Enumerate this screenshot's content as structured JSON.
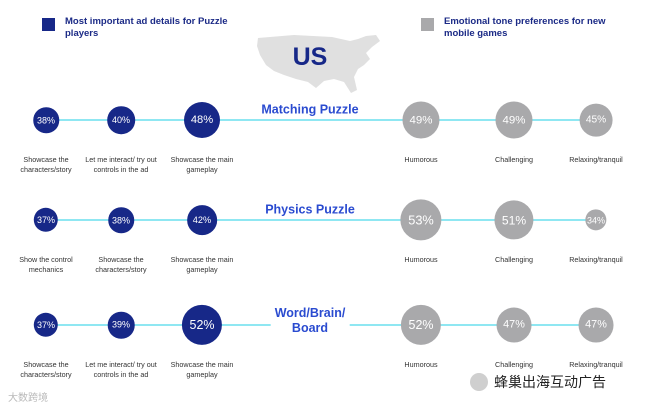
{
  "colors": {
    "ad_details": "#172888",
    "emotional_tone": "#a9a9ab",
    "title_text": "#2a4bd0",
    "connector": "#8fe7f2",
    "legend_text": "#1b2a86"
  },
  "legend": {
    "ad_details": "Most important ad details for Puzzle players",
    "emotional_tone": "Emotional tone preferences for new mobile games"
  },
  "country": "US",
  "map_icon": "usa-map-silhouette",
  "chart_data": [
    {
      "type": "bubble",
      "title": "Matching Puzzle",
      "series": [
        {
          "name": "Most important ad details for Puzzle players",
          "categories": [
            "Showcase the characters/story",
            "Let me interact/ try out controls in the ad",
            "Showcase the main gameplay"
          ],
          "values": [
            38,
            40,
            48
          ],
          "labels": [
            "38%",
            "40%",
            "48%"
          ]
        },
        {
          "name": "Emotional tone preferences for new mobile games",
          "categories": [
            "Humorous",
            "Challenging",
            "Relaxing/tranquil"
          ],
          "values": [
            49,
            49,
            45
          ],
          "labels": [
            "49%",
            "49%",
            "45%"
          ]
        }
      ]
    },
    {
      "type": "bubble",
      "title": "Physics Puzzle",
      "series": [
        {
          "name": "Most important ad details for Puzzle players",
          "categories": [
            "Show the control mechanics",
            "Showcase the characters/story",
            "Showcase the main gameplay"
          ],
          "values": [
            37,
            38,
            42
          ],
          "labels": [
            "37%",
            "38%",
            "42%"
          ]
        },
        {
          "name": "Emotional tone preferences for new mobile games",
          "categories": [
            "Humorous",
            "Challenging",
            "Relaxing/tranquil"
          ],
          "values": [
            53,
            51,
            34
          ],
          "labels": [
            "53%",
            "51%",
            "34%"
          ]
        }
      ]
    },
    {
      "type": "bubble",
      "title": "Word/Brain/ Board",
      "series": [
        {
          "name": "Most important ad details for Puzzle players",
          "categories": [
            "Showcase the characters/story",
            "Let me interact/ try out controls in the ad",
            "Showcase the main gameplay"
          ],
          "values": [
            37,
            39,
            52
          ],
          "labels": [
            "37%",
            "39%",
            "52%"
          ]
        },
        {
          "name": "Emotional tone preferences for new mobile games",
          "categories": [
            "Humorous",
            "Challenging",
            "Relaxing/tranquil"
          ],
          "values": [
            52,
            47,
            47
          ],
          "labels": [
            "52%",
            "47%",
            "47%"
          ]
        }
      ]
    }
  ],
  "watermarks": {
    "left": "大数跨境",
    "right": "蜂巢出海互动广告"
  }
}
